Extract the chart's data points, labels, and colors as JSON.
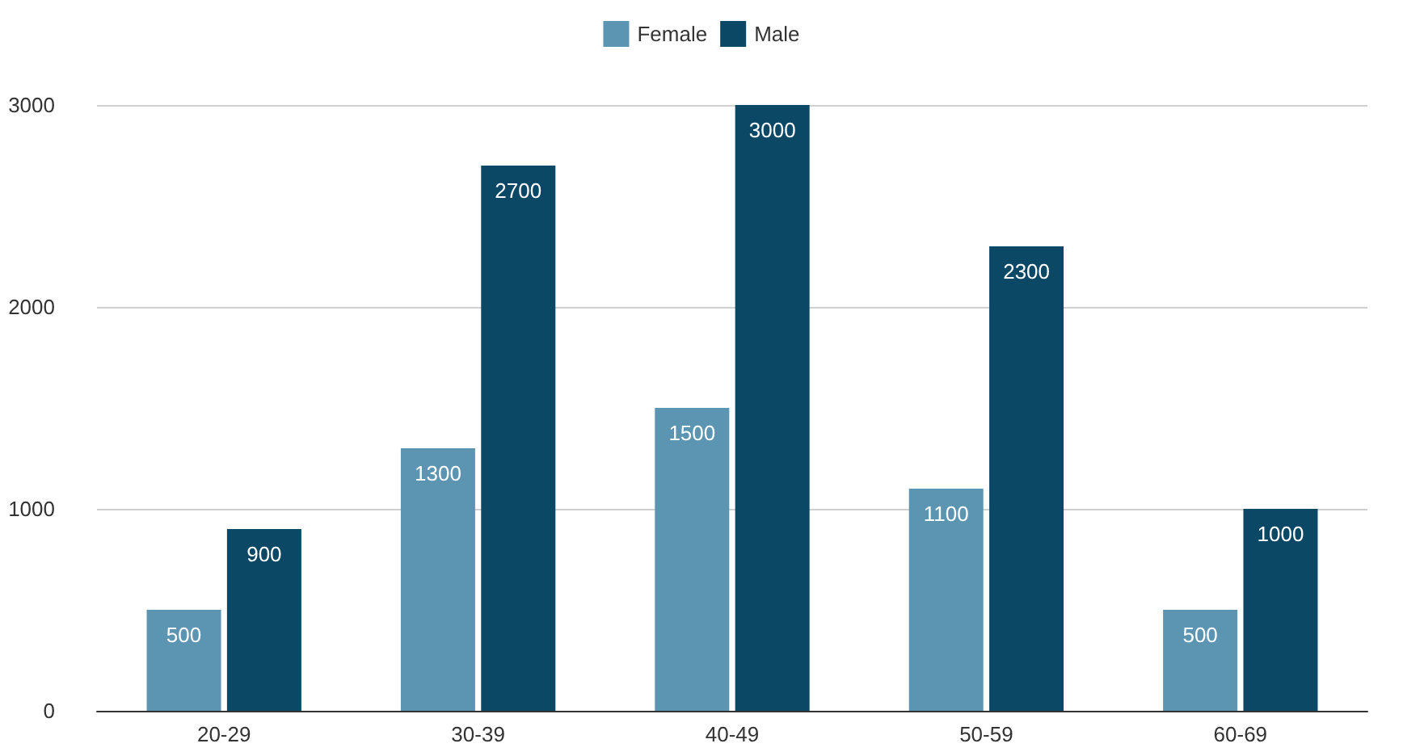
{
  "chart_data": {
    "type": "bar",
    "categories": [
      "20-29",
      "30-39",
      "40-49",
      "50-59",
      "60-69"
    ],
    "series": [
      {
        "name": "Female",
        "color": "#5b95b2",
        "values": [
          500,
          1300,
          1500,
          1100,
          500
        ]
      },
      {
        "name": "Male",
        "color": "#0b4866",
        "values": [
          900,
          2700,
          3000,
          2300,
          1000
        ]
      }
    ],
    "ylim": [
      0,
      3000
    ],
    "yticks": [
      0,
      1000,
      2000,
      3000
    ],
    "grid": "y",
    "legend": "top",
    "data_labels": true
  }
}
